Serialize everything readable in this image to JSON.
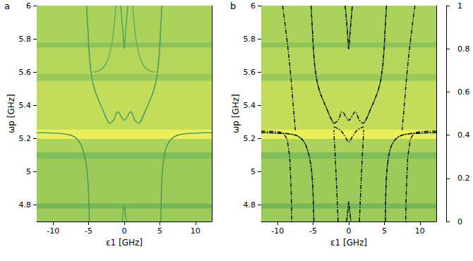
{
  "chart_data": [
    {
      "type": "heatmap",
      "title": "a",
      "xlabel": "ε1 [GHz]",
      "ylabel": "ωp [GHz]",
      "xlim": [
        -12.3,
        12.3
      ],
      "ylim": [
        4.7,
        6.0
      ],
      "xticks": [
        -10,
        -5,
        0,
        5,
        10
      ],
      "yticks": [
        4.8,
        5,
        5.2,
        5.4,
        5.6,
        5.8,
        6
      ],
      "y_edges": [
        4.7,
        4.78,
        4.81,
        5.08,
        5.12,
        5.2,
        5.255,
        5.55,
        5.59,
        5.75,
        5.78,
        6.0
      ],
      "row_values": [
        0.62,
        0.45,
        0.62,
        0.5,
        0.68,
        0.95,
        0.78,
        0.6,
        0.72,
        0.55,
        0.68
      ],
      "features": [
        {
          "x": [
            -12.3,
            -10,
            -8,
            -7,
            -6.3,
            -5.8,
            -5.4,
            -5.15,
            -5.0,
            -4.9
          ],
          "y": [
            5.235,
            5.232,
            5.225,
            5.21,
            5.18,
            5.13,
            5.06,
            4.97,
            4.85,
            4.7
          ],
          "value": 0.25
        },
        {
          "x": [
            12.3,
            10,
            8,
            7,
            6.3,
            5.8,
            5.5,
            5.3,
            5.2,
            5.15
          ],
          "y": [
            5.235,
            5.232,
            5.225,
            5.21,
            5.18,
            5.13,
            5.06,
            4.97,
            4.85,
            4.7
          ],
          "value": 0.25
        },
        {
          "x": [
            -5.3,
            -5.1,
            -4.9,
            -4.6,
            -4.2,
            -3.6,
            -3,
            -2.5,
            -2.1
          ],
          "y": [
            6.0,
            5.85,
            5.7,
            5.58,
            5.5,
            5.43,
            5.37,
            5.32,
            5.29
          ],
          "value": 0.25
        },
        {
          "x": [
            5.3,
            5.1,
            4.9,
            4.6,
            4.2,
            3.6,
            3,
            2.5,
            2.1
          ],
          "y": [
            6.0,
            5.85,
            5.7,
            5.58,
            5.5,
            5.43,
            5.37,
            5.32,
            5.29
          ],
          "value": 0.25
        },
        {
          "x": [
            -2.1,
            -1.5,
            -0.9,
            -0.4,
            0,
            0.4,
            0.9,
            1.5,
            2.1
          ],
          "y": [
            5.29,
            5.31,
            5.36,
            5.33,
            5.31,
            5.33,
            5.36,
            5.31,
            5.29
          ],
          "value": 0.3
        },
        {
          "x": [
            -1.2,
            -1.5,
            -2,
            -2.7,
            -3.5,
            -4.3
          ],
          "y": [
            6.0,
            5.85,
            5.72,
            5.64,
            5.61,
            5.6
          ],
          "value": 0.4
        },
        {
          "x": [
            1.2,
            1.5,
            2,
            2.7,
            3.5,
            4.3
          ],
          "y": [
            6.0,
            5.85,
            5.72,
            5.64,
            5.61,
            5.6
          ],
          "value": 0.4
        },
        {
          "x": [
            -0.5,
            -0.2,
            0,
            0.2,
            0.5
          ],
          "y": [
            6.0,
            5.85,
            5.74,
            5.85,
            6.0
          ],
          "value": 0.3
        },
        {
          "x": [
            -0.3,
            -0.1,
            0,
            0.1,
            0.3
          ],
          "y": [
            4.7,
            4.77,
            4.8,
            4.77,
            4.7
          ],
          "value": 0.3
        }
      ]
    },
    {
      "type": "heatmap",
      "title": "b",
      "xlabel": "ε1 [GHz]",
      "ylabel": "ωp [GHz]",
      "xlim": [
        -12.3,
        12.3
      ],
      "ylim": [
        4.7,
        6.0
      ],
      "xticks": [
        -10,
        -5,
        0,
        5,
        10
      ],
      "yticks": [
        4.8,
        5,
        5.2,
        5.4,
        5.6,
        5.8,
        6
      ],
      "y_edges": [
        4.7,
        4.78,
        4.81,
        5.08,
        5.12,
        5.2,
        5.255,
        5.55,
        5.59,
        5.75,
        5.78,
        6.0
      ],
      "row_values": [
        0.62,
        0.45,
        0.62,
        0.5,
        0.68,
        0.95,
        0.78,
        0.6,
        0.72,
        0.55,
        0.68
      ],
      "features": [
        {
          "x": [
            -12.3,
            -10,
            -8,
            -7,
            -6.3,
            -5.8,
            -5.4,
            -5.15,
            -5.0,
            -4.9
          ],
          "y": [
            5.235,
            5.232,
            5.225,
            5.21,
            5.18,
            5.13,
            5.06,
            4.97,
            4.85,
            4.7
          ],
          "value": 0.25
        },
        {
          "x": [
            12.3,
            10,
            8,
            7,
            6.3,
            5.8,
            5.5,
            5.3,
            5.2,
            5.15
          ],
          "y": [
            5.235,
            5.232,
            5.225,
            5.21,
            5.18,
            5.13,
            5.06,
            4.97,
            4.85,
            4.7
          ],
          "value": 0.25
        },
        {
          "x": [
            -5.3,
            -5.1,
            -4.9,
            -4.6,
            -4.2,
            -3.6,
            -3,
            -2.5,
            -2.1
          ],
          "y": [
            6.0,
            5.85,
            5.7,
            5.58,
            5.5,
            5.43,
            5.37,
            5.32,
            5.29
          ],
          "value": 0.25
        },
        {
          "x": [
            5.3,
            5.1,
            4.9,
            4.6,
            4.2,
            3.6,
            3,
            2.5,
            2.1
          ],
          "y": [
            6.0,
            5.85,
            5.7,
            5.58,
            5.5,
            5.43,
            5.37,
            5.32,
            5.29
          ],
          "value": 0.25
        },
        {
          "x": [
            -0.5,
            -0.2,
            0,
            0.2,
            0.5
          ],
          "y": [
            6.0,
            5.85,
            5.74,
            5.85,
            6.0
          ],
          "value": 0.3
        },
        {
          "x": [
            -0.3,
            -0.1,
            0,
            0.1,
            0.3
          ],
          "y": [
            4.7,
            4.77,
            4.8,
            4.77,
            4.7
          ],
          "value": 0.3
        }
      ],
      "theory": [
        {
          "x": [
            -12.3,
            -10,
            -8,
            -7,
            -6.3,
            -5.8,
            -5.4,
            -5.15,
            -5.0,
            -4.9
          ],
          "y": [
            5.235,
            5.232,
            5.225,
            5.21,
            5.18,
            5.13,
            5.06,
            4.97,
            4.85,
            4.7
          ]
        },
        {
          "x": [
            12.3,
            10,
            8,
            7,
            6.3,
            5.8,
            5.5,
            5.3,
            5.2,
            5.15
          ],
          "y": [
            5.235,
            5.232,
            5.225,
            5.21,
            5.18,
            5.13,
            5.06,
            4.97,
            4.85,
            4.7
          ]
        },
        {
          "x": [
            -12.3,
            -10,
            -9,
            -8.5,
            -8.2,
            -8.0
          ],
          "y": [
            5.245,
            5.24,
            5.22,
            5.15,
            5.0,
            4.7
          ]
        },
        {
          "x": [
            12.3,
            10,
            9,
            8.5,
            8.2,
            8.0
          ],
          "y": [
            5.245,
            5.24,
            5.22,
            5.15,
            5.0,
            4.7
          ]
        },
        {
          "x": [
            -9.3,
            -8.7,
            -8.2,
            -7.8,
            -7.5
          ],
          "y": [
            6.0,
            5.8,
            5.6,
            5.4,
            5.25
          ]
        },
        {
          "x": [
            9.3,
            8.7,
            8.2,
            7.8,
            7.5
          ],
          "y": [
            6.0,
            5.8,
            5.6,
            5.4,
            5.25
          ]
        },
        {
          "x": [
            -5.3,
            -5.1,
            -4.9,
            -4.6,
            -4.2,
            -3.6,
            -3,
            -2.5,
            -2.1
          ],
          "y": [
            6.0,
            5.85,
            5.7,
            5.58,
            5.5,
            5.43,
            5.37,
            5.32,
            5.29
          ]
        },
        {
          "x": [
            5.3,
            5.1,
            4.9,
            4.6,
            4.2,
            3.6,
            3,
            2.5,
            2.1
          ],
          "y": [
            6.0,
            5.85,
            5.7,
            5.58,
            5.5,
            5.43,
            5.37,
            5.32,
            5.29
          ]
        },
        {
          "x": [
            -2.1,
            -1.5,
            -0.9,
            -0.4,
            0,
            0.4,
            0.9,
            1.5,
            2.1
          ],
          "y": [
            5.29,
            5.31,
            5.36,
            5.33,
            5.31,
            5.33,
            5.36,
            5.31,
            5.29
          ]
        },
        {
          "x": [
            -2.1,
            -1.2,
            -0.5,
            0,
            0.5,
            1.2,
            2.1
          ],
          "y": [
            5.27,
            5.25,
            5.21,
            5.18,
            5.21,
            5.25,
            5.27
          ]
        },
        {
          "x": [
            -0.5,
            -0.2,
            0,
            0.2,
            0.5
          ],
          "y": [
            6.0,
            5.85,
            5.74,
            5.85,
            6.0
          ]
        },
        {
          "x": [
            -0.3,
            -0.1,
            0,
            0.1,
            0.3
          ],
          "y": [
            4.7,
            4.78,
            4.82,
            4.78,
            4.7
          ]
        },
        {
          "x": [
            -1.5,
            -1.8,
            -2.1
          ],
          "y": [
            4.7,
            5.0,
            5.25
          ]
        },
        {
          "x": [
            1.5,
            1.8,
            2.1
          ],
          "y": [
            4.7,
            5.0,
            5.25
          ]
        }
      ],
      "line_style": "dashdot",
      "color": "#000000",
      "colorbar": {
        "range": [
          0,
          1
        ],
        "ticks": [
          0,
          0.2,
          0.4,
          0.6,
          0.8,
          1
        ]
      }
    }
  ]
}
